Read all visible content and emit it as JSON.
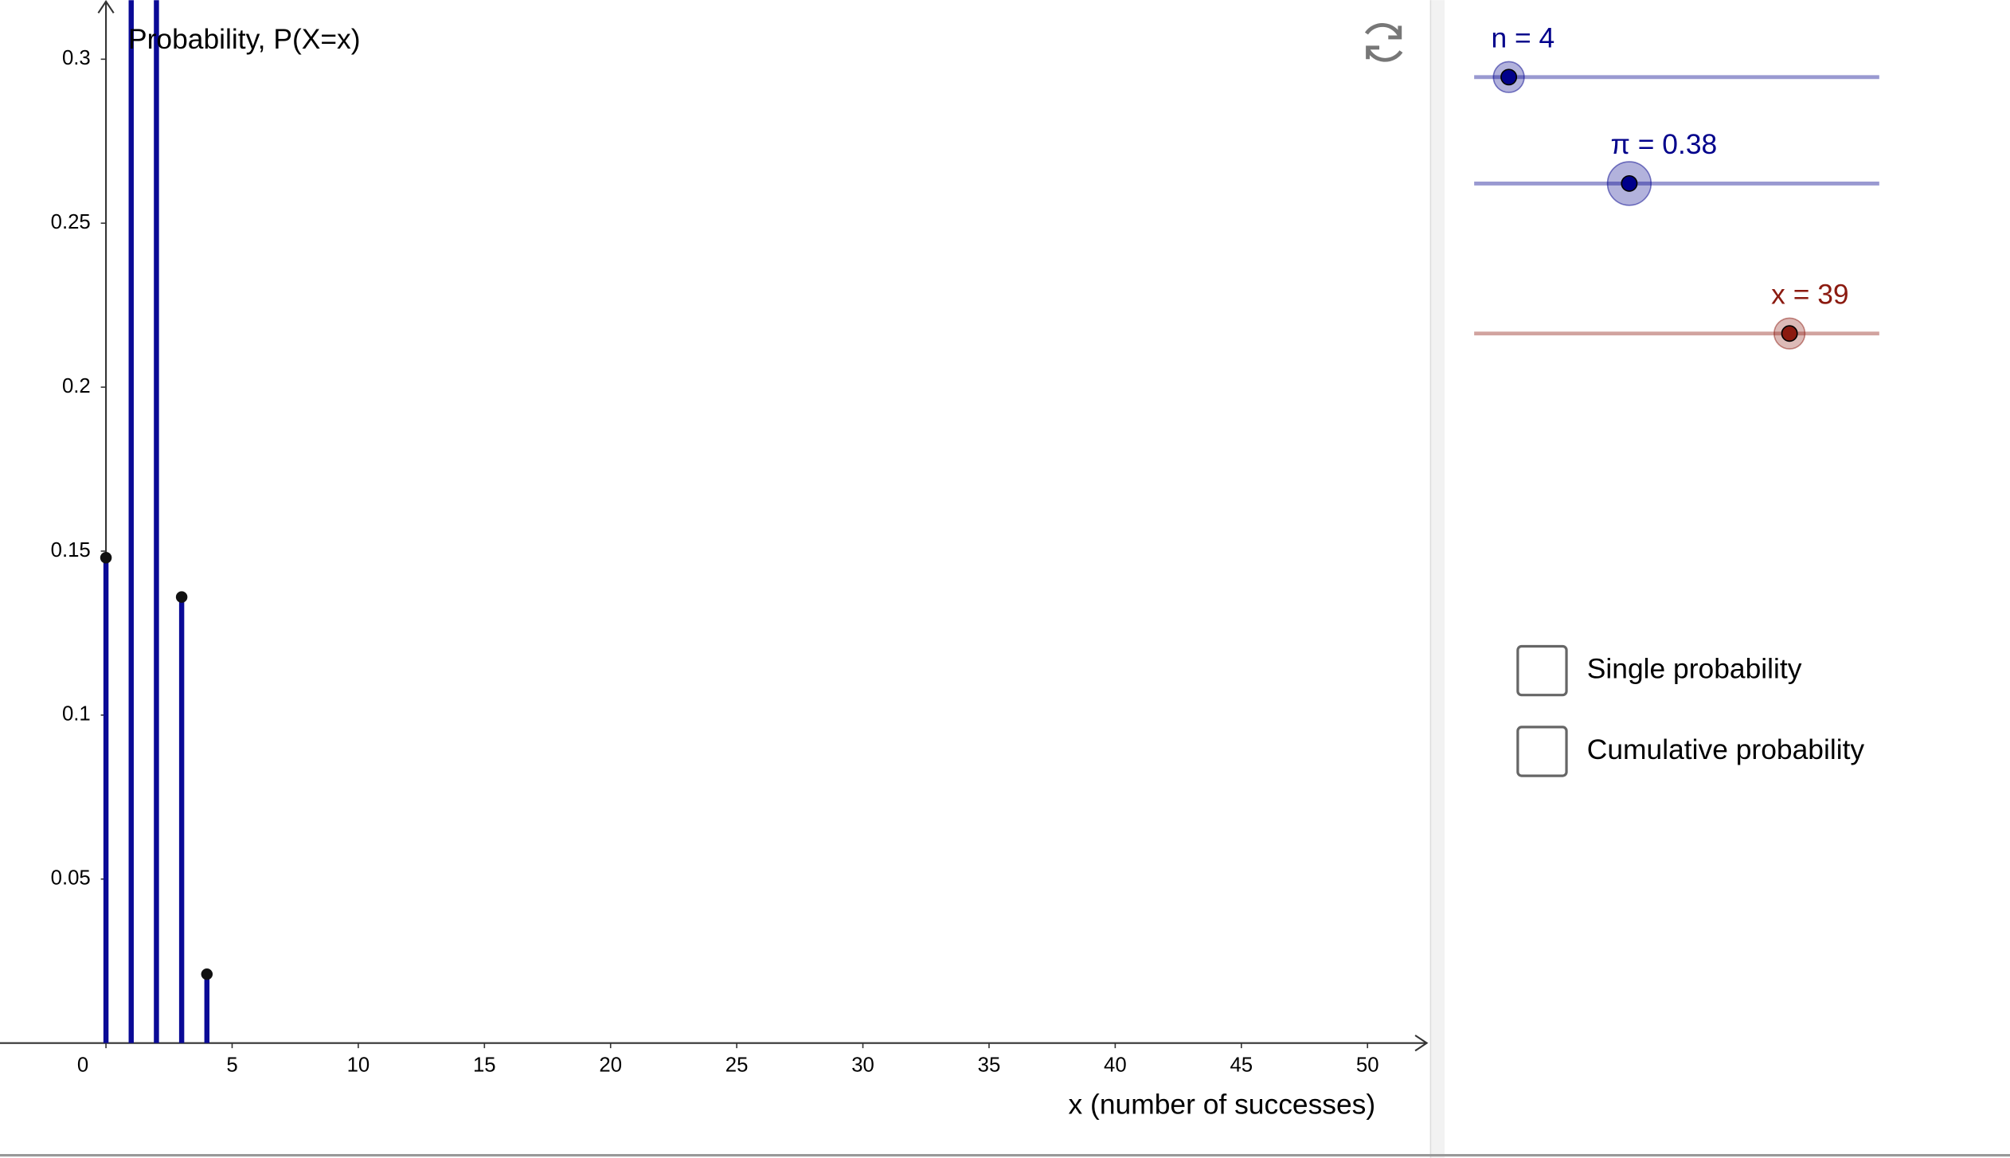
{
  "chart_data": {
    "type": "stem",
    "y_label": "Probability, P(X=x)",
    "x_label": "x (number of successes)",
    "x": [
      0,
      1,
      2,
      3,
      4
    ],
    "values": [
      0.148,
      0.362,
      0.333,
      0.136,
      0.021
    ],
    "color": "#0a0a96",
    "xlim": [
      -4.2,
      52.5
    ],
    "ylim": [
      -0.035,
      0.318
    ],
    "xticks": [
      0,
      5,
      10,
      15,
      20,
      25,
      30,
      35,
      40,
      45,
      50
    ],
    "yticks": [
      0.05,
      0.1,
      0.15,
      0.2,
      0.25,
      0.3
    ]
  },
  "controls": {
    "sliders": [
      {
        "label": "n = 4",
        "color": "#00008b"
      },
      {
        "label": "π = 0.38",
        "color": "#00008b"
      },
      {
        "label": "x = 39",
        "color": "#8b1a10"
      }
    ],
    "checkboxes": [
      "Single probability",
      "Cumulative probability"
    ]
  }
}
